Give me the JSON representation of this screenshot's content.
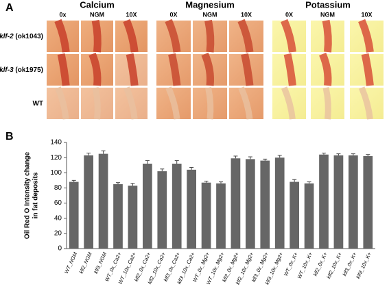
{
  "panel_a": {
    "label": "A",
    "groups": [
      {
        "title": "Calcium",
        "columns": [
          "0x",
          "NGM",
          "10X"
        ]
      },
      {
        "title": "Magnesium",
        "columns": [
          "0X",
          "NGM",
          "10X"
        ]
      },
      {
        "title": "Potassium",
        "columns": [
          "0X",
          "NGM",
          "10X"
        ]
      }
    ],
    "rows": [
      {
        "name": "klf-2",
        "strain": "(ok1043)"
      },
      {
        "name": "klf-3",
        "strain": "(ok1975)"
      },
      {
        "name": "WT"
      }
    ]
  },
  "chart_data": {
    "type": "bar",
    "panel_label": "B",
    "y_label": [
      "Oil Red O Intensity change",
      "in fat deposits"
    ],
    "categories": [
      "WT_NGM",
      "klf2_NGM",
      "klf3_NGM",
      "WT_0x_Ca2+",
      "WT_10x_Ca2+",
      "klf2_0x_Ca2+",
      "klf2_10x_Ca2+",
      "klf3_0x_Ca2+",
      "klf3_10x_Ca2+",
      "WT_0x_Mg2+",
      "WT_10x_Mg2+",
      "klf2_0x_Mg2+",
      "klf2_10x_Mg2+",
      "klf3_0x_Mg2+",
      "klf3_10x_Mg2+",
      "WT_0x_K+",
      "WT_10x_K+",
      "klf2_0x_K+",
      "klf2_10x_K+",
      "klf3_0x_K+",
      "klf3_10x_K+"
    ],
    "values": [
      88,
      123,
      125,
      85,
      83,
      112,
      102,
      112,
      104,
      87,
      86,
      119,
      118,
      116,
      120,
      88,
      86,
      124,
      123,
      123,
      122
    ],
    "errors": [
      2,
      3,
      4,
      2,
      3,
      4,
      3,
      4,
      3,
      2,
      2,
      3,
      3,
      2,
      3,
      3,
      2,
      2,
      2,
      2,
      2
    ],
    "color": "#666666",
    "ylim": [
      0,
      140
    ],
    "yticks": [
      0,
      20,
      40,
      60,
      80,
      100,
      120,
      140
    ]
  }
}
